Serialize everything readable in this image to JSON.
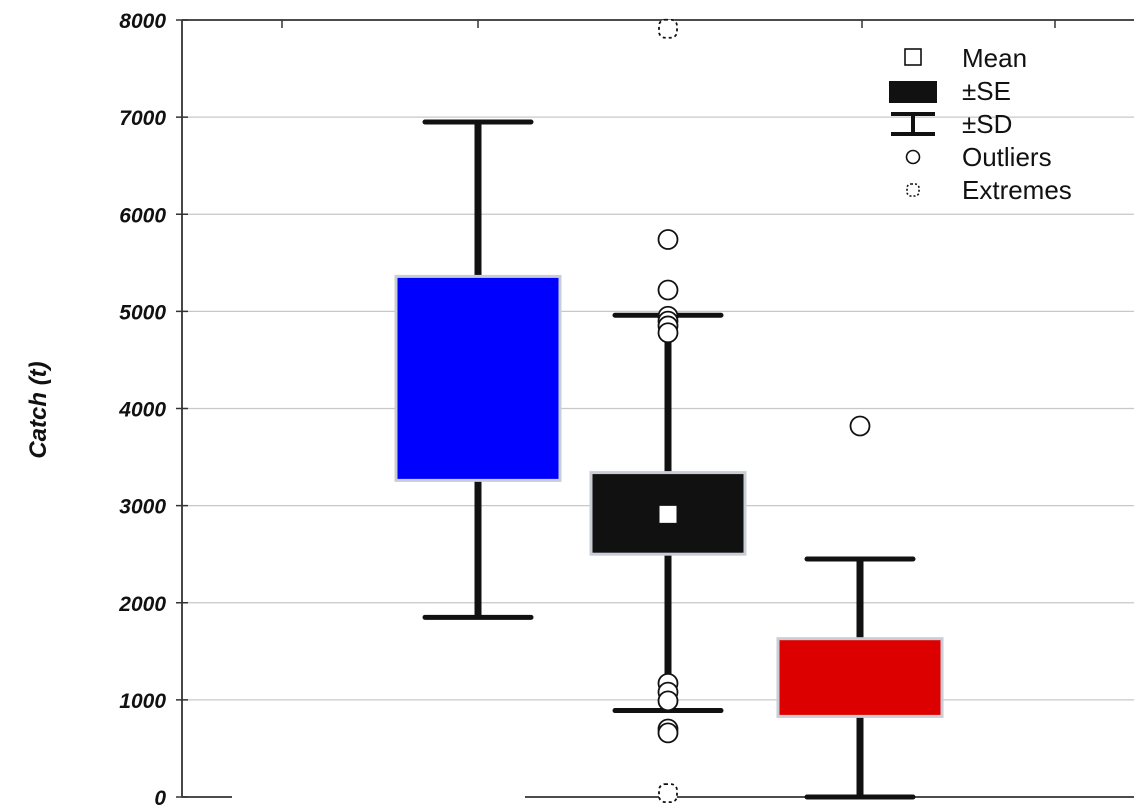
{
  "chart_data": {
    "type": "box",
    "ylabel": "Catch (t)",
    "ylim": [
      0,
      8000
    ],
    "yticks": [
      0,
      1000,
      2000,
      3000,
      4000,
      5000,
      6000,
      7000,
      8000
    ],
    "ytick_labels": [
      "0",
      "1000",
      "2000",
      "3000",
      "4000",
      "5000",
      "6000",
      "7000",
      "8000"
    ],
    "grid": true,
    "legend_position": "top-right",
    "legend": [
      {
        "key": "mean",
        "label": "Mean"
      },
      {
        "key": "se",
        "label": "±SE"
      },
      {
        "key": "sd",
        "label": "±SD"
      },
      {
        "key": "outliers",
        "label": "Outliers"
      },
      {
        "key": "extremes",
        "label": "Extremes"
      }
    ],
    "boxes": [
      {
        "color": "#0000ff",
        "box_low": 3260,
        "box_high": 5360,
        "whisker_low": 1850,
        "whisker_high": 6950,
        "mean": null,
        "outliers": [],
        "extremes": []
      },
      {
        "color": "#111111",
        "box_low": 2500,
        "box_high": 3340,
        "whisker_low": 890,
        "whisker_high": 4960,
        "mean": 2910,
        "outliers": [
          5740,
          5220,
          4950,
          4900,
          4850,
          4780,
          1170,
          1080,
          990,
          700,
          660
        ],
        "extremes": [
          7910,
          40
        ]
      },
      {
        "color": "#dd0000",
        "box_low": 830,
        "box_high": 1630,
        "whisker_low": 0,
        "whisker_high": 2450,
        "mean": null,
        "outliers": [
          3820
        ],
        "extremes": []
      }
    ]
  }
}
